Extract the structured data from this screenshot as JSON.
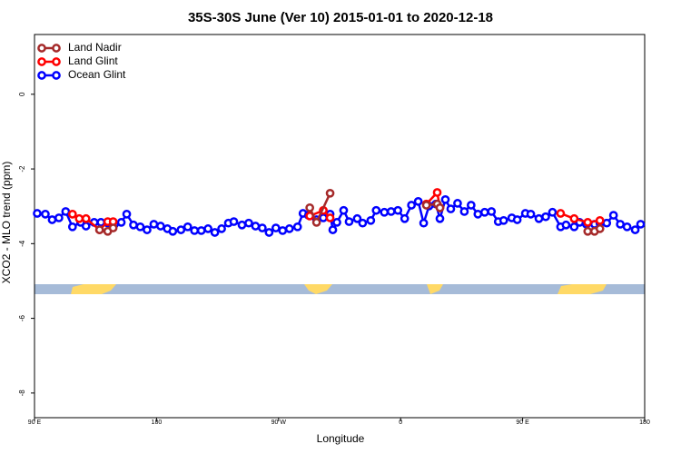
{
  "chart_data": {
    "type": "line",
    "title": "35S-30S June (Ver 10)   2015-01-01 to 2020-12-18",
    "xlabel": "Longitude",
    "ylabel": "XCO2 - MLO trend (ppm)",
    "xlim": [
      90,
      540
    ],
    "ylim": [
      -8.66,
      1.6
    ],
    "xticks": [
      {
        "value": 90,
        "label": "90 E"
      },
      {
        "value": 180,
        "label": "180"
      },
      {
        "value": 270,
        "label": "90 W"
      },
      {
        "value": 360,
        "label": "0"
      },
      {
        "value": 450,
        "label": "90 E"
      },
      {
        "value": 540,
        "label": "180"
      }
    ],
    "yticks": [
      0,
      -2,
      -4,
      -6,
      -8
    ],
    "legend": "top-left",
    "series": [
      {
        "name": "Land Nadir",
        "color": "#a52a2a",
        "x": [
          138,
          144,
          148,
          293,
          298,
          308,
          379,
          387,
          389,
          498,
          503,
          507
        ],
        "values": [
          -3.63,
          -3.67,
          -3.58,
          -3.04,
          -3.43,
          -2.65,
          -2.97,
          -2.94,
          -3.04,
          -3.67,
          -3.67,
          -3.6
        ]
      },
      {
        "name": "Land Glint",
        "color": "#ff0000",
        "x": [
          118,
          123,
          128,
          138,
          144,
          148,
          293,
          303,
          308,
          379,
          387,
          389,
          478,
          488,
          498,
          507
        ],
        "values": [
          -3.21,
          -3.33,
          -3.33,
          -3.63,
          -3.41,
          -3.41,
          -3.26,
          -3.11,
          -3.31,
          -2.94,
          -2.63,
          -3.04,
          -3.19,
          -3.33,
          -3.43,
          -3.38
        ]
      },
      {
        "name": "Ocean Glint",
        "color": "#0000ff",
        "x": [
          92,
          98,
          103,
          108,
          113,
          118,
          124,
          128,
          134,
          139,
          144,
          149,
          154,
          158,
          163,
          168,
          173,
          178,
          183,
          188,
          192,
          198,
          203,
          208,
          213,
          218,
          223,
          228,
          233,
          237,
          243,
          248,
          253,
          258,
          263,
          268,
          273,
          278,
          284,
          288,
          292,
          298,
          303,
          308,
          310,
          313,
          318,
          322,
          328,
          332,
          338,
          342,
          348,
          353,
          358,
          363,
          368,
          373,
          377,
          381,
          386,
          389,
          393,
          397,
          402,
          407,
          412,
          417,
          422,
          427,
          432,
          436,
          442,
          446,
          452,
          456,
          462,
          467,
          472,
          478,
          482,
          488,
          492,
          497,
          503,
          507,
          512,
          517,
          522,
          527,
          533,
          537
        ],
        "values": [
          -3.19,
          -3.21,
          -3.36,
          -3.31,
          -3.14,
          -3.55,
          -3.43,
          -3.53,
          -3.43,
          -3.43,
          -3.45,
          -3.48,
          -3.43,
          -3.21,
          -3.5,
          -3.55,
          -3.63,
          -3.48,
          -3.53,
          -3.6,
          -3.67,
          -3.63,
          -3.55,
          -3.65,
          -3.65,
          -3.6,
          -3.7,
          -3.6,
          -3.45,
          -3.41,
          -3.5,
          -3.45,
          -3.53,
          -3.58,
          -3.7,
          -3.58,
          -3.65,
          -3.6,
          -3.55,
          -3.19,
          -3.24,
          -3.36,
          -3.31,
          -3.21,
          -3.63,
          -3.43,
          -3.11,
          -3.41,
          -3.33,
          -3.45,
          -3.38,
          -3.11,
          -3.16,
          -3.14,
          -3.11,
          -3.33,
          -2.97,
          -2.87,
          -3.45,
          -2.99,
          -2.94,
          -3.33,
          -2.82,
          -3.07,
          -2.92,
          -3.14,
          -2.97,
          -3.21,
          -3.16,
          -3.14,
          -3.41,
          -3.38,
          -3.31,
          -3.36,
          -3.19,
          -3.21,
          -3.33,
          -3.28,
          -3.16,
          -3.55,
          -3.5,
          -3.55,
          -3.43,
          -3.48,
          -3.48,
          -3.45,
          -3.45,
          -3.24,
          -3.48,
          -3.55,
          -3.63,
          -3.48
        ]
      }
    ]
  }
}
